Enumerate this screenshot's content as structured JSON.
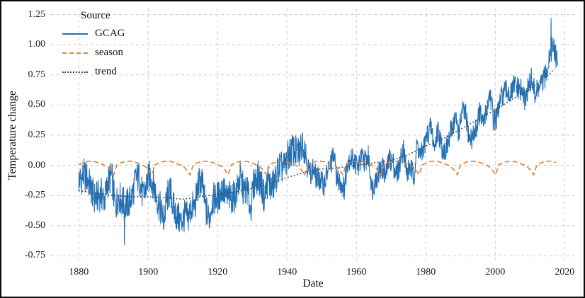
{
  "chart_data": {
    "type": "line",
    "title": "",
    "xlabel": "Date",
    "ylabel": "Temperature change",
    "xlim": [
      1872,
      2023
    ],
    "ylim": [
      -0.8,
      1.3
    ],
    "x_ticks": [
      1880,
      1900,
      1920,
      1940,
      1960,
      1980,
      2000,
      2020
    ],
    "y_ticks": [
      -0.75,
      -0.5,
      -0.25,
      0,
      0.25,
      0.5,
      0.75,
      1,
      1.25
    ],
    "grid": true,
    "grid_color": "#cccccc",
    "background": "#ffffff",
    "legend": {
      "title": "Source",
      "position": "top-left"
    },
    "series": [
      {
        "name": "GCAG",
        "color": "#2470b3",
        "style": "solid",
        "resolution": "monthly",
        "x_start": 1880,
        "x_end": 2017.9,
        "annual_means": [
          -0.12,
          -0.08,
          -0.11,
          -0.19,
          -0.27,
          -0.26,
          -0.24,
          -0.28,
          -0.13,
          -0.09,
          -0.35,
          -0.25,
          -0.3,
          -0.33,
          -0.31,
          -0.24,
          -0.1,
          -0.11,
          -0.27,
          -0.16,
          -0.08,
          -0.15,
          -0.27,
          -0.36,
          -0.46,
          -0.26,
          -0.22,
          -0.38,
          -0.43,
          -0.47,
          -0.42,
          -0.43,
          -0.35,
          -0.34,
          -0.15,
          -0.13,
          -0.35,
          -0.45,
          -0.29,
          -0.27,
          -0.26,
          -0.18,
          -0.28,
          -0.26,
          -0.27,
          -0.22,
          -0.1,
          -0.21,
          -0.2,
          -0.36,
          -0.15,
          -0.09,
          -0.15,
          -0.28,
          -0.12,
          -0.19,
          -0.14,
          -0.02,
          -0.02,
          -0.01,
          0.09,
          0.13,
          0.11,
          0.1,
          0.21,
          0.09,
          -0.07,
          -0.03,
          -0.11,
          -0.11,
          -0.17,
          -0.07,
          0.01,
          0.08,
          -0.13,
          -0.14,
          -0.19,
          0.05,
          0.06,
          0.03,
          -0.02,
          0.06,
          0.04,
          0.07,
          -0.2,
          -0.11,
          -0.06,
          -0.02,
          -0.08,
          0.05,
          0.03,
          -0.08,
          0.01,
          0.16,
          -0.07,
          -0.01,
          -0.1,
          0.18,
          0.07,
          0.16,
          0.26,
          0.32,
          0.14,
          0.31,
          0.16,
          0.12,
          0.18,
          0.32,
          0.39,
          0.27,
          0.45,
          0.41,
          0.22,
          0.23,
          0.31,
          0.45,
          0.33,
          0.46,
          0.61,
          0.38,
          0.39,
          0.54,
          0.6,
          0.62,
          0.58,
          0.67,
          0.63,
          0.62,
          0.54,
          0.64,
          0.72,
          0.58,
          0.64,
          0.68,
          0.74,
          0.9,
          0.99,
          0.9
        ],
        "monthly_scatter": {
          "early_amplitude": 0.14,
          "late_amplitude": 0.1,
          "transition_year": 1946
        }
      },
      {
        "name": "season",
        "color": "#e2823b",
        "style": "dashed",
        "x_range": [
          1880,
          2018
        ],
        "period_years": 11,
        "pattern": [
          0.004,
          0.018,
          0.028,
          0.034,
          0.035,
          0.031,
          0.024,
          0.014,
          0.002,
          -0.012,
          -0.04,
          -0.078
        ]
      },
      {
        "name": "trend",
        "color": "#3a4a5f",
        "style": "dotted",
        "x": [
          1880,
          1885,
          1890,
          1895,
          1900,
          1905,
          1910,
          1915,
          1920,
          1925,
          1930,
          1935,
          1940,
          1945,
          1950,
          1955,
          1960,
          1965,
          1970,
          1975,
          1980,
          1985,
          1990,
          1995,
          2000,
          2005,
          2010,
          2015,
          2017
        ],
        "values": [
          -0.21,
          -0.23,
          -0.25,
          -0.26,
          -0.26,
          -0.27,
          -0.28,
          -0.26,
          -0.24,
          -0.22,
          -0.19,
          -0.15,
          -0.1,
          -0.06,
          -0.03,
          -0.02,
          0.0,
          0.02,
          0.04,
          0.09,
          0.16,
          0.22,
          0.3,
          0.38,
          0.46,
          0.55,
          0.63,
          0.74,
          0.8
        ]
      }
    ],
    "notable_points": [
      {
        "series": "GCAG",
        "x": 2016.1,
        "y": 1.22
      },
      {
        "series": "GCAG",
        "x": 1893.2,
        "y": -0.66
      }
    ]
  }
}
